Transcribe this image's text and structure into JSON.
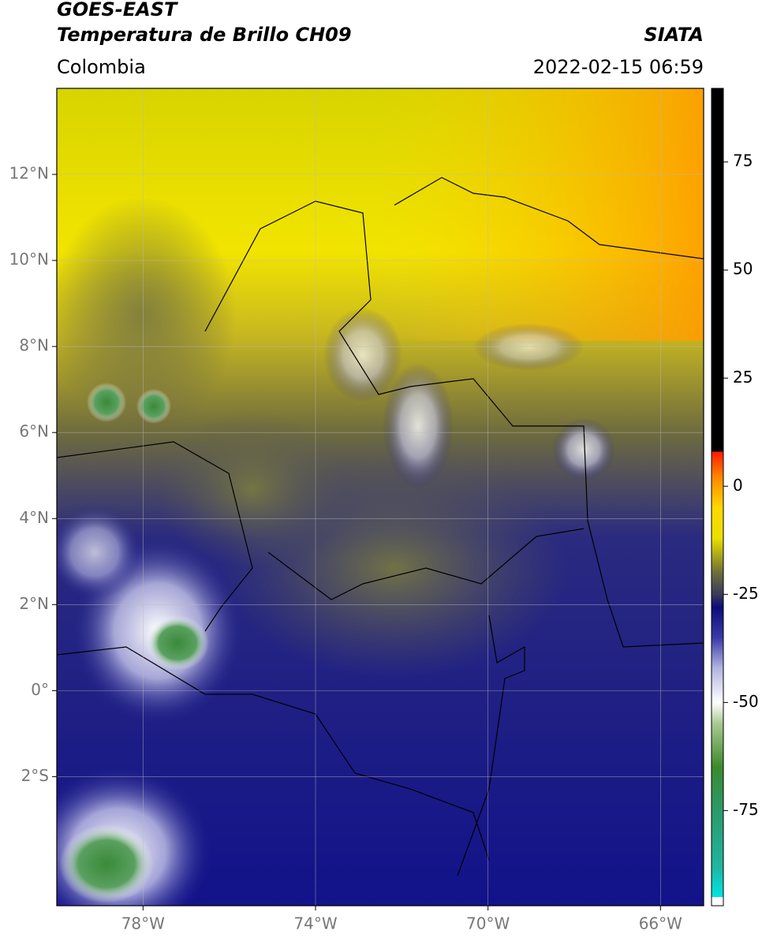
{
  "header": {
    "title": "GOES-EAST",
    "subtitle": "Temperatura de Brillo CH09",
    "region": "Colombia",
    "source": "SIATA",
    "datetime": "2022-02-15 06:59"
  },
  "map": {
    "xlim": [
      -80,
      -65
    ],
    "ylim": [
      -5,
      14
    ],
    "xticks": [
      {
        "value": -78,
        "label": "78°W"
      },
      {
        "value": -74,
        "label": "74°W"
      },
      {
        "value": -70,
        "label": "70°W"
      },
      {
        "value": -66,
        "label": "66°W"
      }
    ],
    "yticks": [
      {
        "value": 12,
        "label": "12°N"
      },
      {
        "value": 10,
        "label": "10°N"
      },
      {
        "value": 8,
        "label": "8°N"
      },
      {
        "value": 6,
        "label": "6°N"
      },
      {
        "value": 4,
        "label": "4°N"
      },
      {
        "value": 2,
        "label": "2°N"
      },
      {
        "value": 0,
        "label": "0°"
      },
      {
        "value": -2,
        "label": "2°S"
      }
    ],
    "grid": true
  },
  "colorbar": {
    "lim": [
      -97,
      92
    ],
    "ticks": [
      75,
      50,
      25,
      0,
      -25,
      -50,
      -75
    ],
    "stops": [
      {
        "value": -97,
        "color": "#ffffff"
      },
      {
        "value": -95,
        "color": "#ffffff"
      },
      {
        "value": -95,
        "color": "#00e5e5"
      },
      {
        "value": -88,
        "color": "#1fb5a0"
      },
      {
        "value": -75,
        "color": "#2a9a6a"
      },
      {
        "value": -65,
        "color": "#3c8a2c"
      },
      {
        "value": -55,
        "color": "#a8c890"
      },
      {
        "value": -50,
        "color": "#ffffff"
      },
      {
        "value": -42,
        "color": "#b0b4e0"
      },
      {
        "value": -35,
        "color": "#3a3aa8"
      },
      {
        "value": -28,
        "color": "#0c0c78"
      },
      {
        "value": -25,
        "color": "#3a3a5a"
      },
      {
        "value": -20,
        "color": "#6e6e3a"
      },
      {
        "value": -12,
        "color": "#e8e000"
      },
      {
        "value": -5,
        "color": "#ffd800"
      },
      {
        "value": 2,
        "color": "#ff8800"
      },
      {
        "value": 8,
        "color": "#ff1a00"
      },
      {
        "value": 8,
        "color": "#000000"
      },
      {
        "value": 92,
        "color": "#000000"
      }
    ]
  }
}
